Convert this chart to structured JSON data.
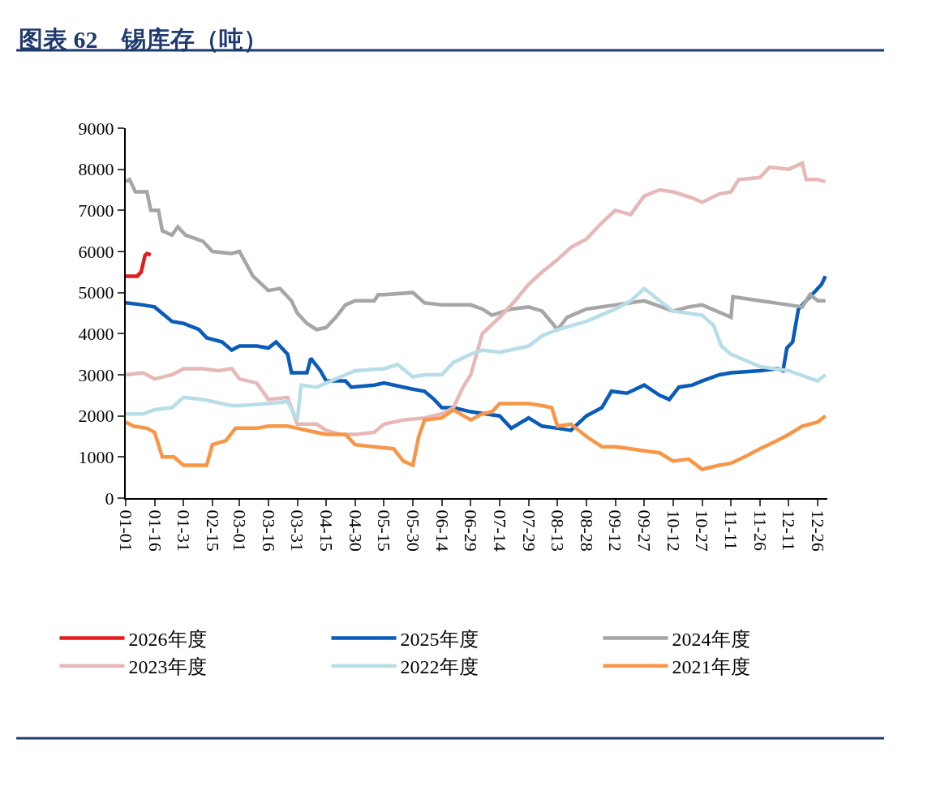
{
  "chart_data": {
    "type": "line",
    "title": "图表 62　锡库存（吨）",
    "xlim": [
      "--01-01",
      "--12-31"
    ],
    "xticks": [
      {
        "value": "--01-01",
        "label": "01-01"
      },
      {
        "value": "--01-16",
        "label": "01-16"
      },
      {
        "value": "--01-31",
        "label": "01-31"
      },
      {
        "value": "--02-15",
        "label": "02-15"
      },
      {
        "value": "--03-01",
        "label": "03-01"
      },
      {
        "value": "--03-16",
        "label": "03-16"
      },
      {
        "value": "--03-31",
        "label": "03-31"
      },
      {
        "value": "--04-15",
        "label": "04-15"
      },
      {
        "value": "--04-30",
        "label": "04-30"
      },
      {
        "value": "--05-15",
        "label": "05-15"
      },
      {
        "value": "--05-30",
        "label": "05-30"
      },
      {
        "value": "--06-14",
        "label": "06-14"
      },
      {
        "value": "--06-29",
        "label": "06-29"
      },
      {
        "value": "--07-14",
        "label": "07-14"
      },
      {
        "value": "--07-29",
        "label": "07-29"
      },
      {
        "value": "--08-13",
        "label": "08-13"
      },
      {
        "value": "--08-28",
        "label": "08-28"
      },
      {
        "value": "--09-12",
        "label": "09-12"
      },
      {
        "value": "--09-27",
        "label": "09-27"
      },
      {
        "value": "--10-12",
        "label": "10-12"
      },
      {
        "value": "--10-27",
        "label": "10-27"
      },
      {
        "value": "--11-11",
        "label": "11-11"
      },
      {
        "value": "--11-26",
        "label": "11-26"
      },
      {
        "value": "--12-11",
        "label": "12-11"
      },
      {
        "value": "--12-26",
        "label": "12-26"
      }
    ],
    "ylim": [
      0,
      9000
    ],
    "yticks": [
      0,
      1000,
      2000,
      3000,
      4000,
      5000,
      6000,
      7000,
      8000,
      9000
    ],
    "grid": false,
    "legend": "bottom",
    "marker": "none",
    "line_style": "solid",
    "series": [
      {
        "name": "2026年度",
        "color": "#e31a1c",
        "x": [
          "--01-01",
          "--01-07",
          "--01-09",
          "--01-11",
          "--01-12",
          "--01-14"
        ],
        "values": [
          5400,
          5400,
          5500,
          5900,
          5950,
          5920
        ]
      },
      {
        "name": "2025年度",
        "color": "#0a5cb8",
        "x": [
          "--01-01",
          "--01-10",
          "--01-16",
          "--01-25",
          "--01-31",
          "--02-08",
          "--02-12",
          "--02-20",
          "--02-25",
          "--03-01",
          "--03-10",
          "--03-16",
          "--03-20",
          "--03-26",
          "--03-28",
          "--04-05",
          "--04-07",
          "--04-12",
          "--04-15",
          "--04-25",
          "--04-28",
          "--05-10",
          "--05-15",
          "--05-25",
          "--05-30",
          "--06-05",
          "--06-10",
          "--06-14",
          "--06-20",
          "--06-29",
          "--07-14",
          "--07-20",
          "--07-29",
          "--08-05",
          "--08-13",
          "--08-20",
          "--08-28",
          "--09-05",
          "--09-10",
          "--09-18",
          "--09-27",
          "--10-05",
          "--10-10",
          "--10-15",
          "--10-22",
          "--10-27",
          "--11-05",
          "--11-11",
          "--11-26",
          "--12-05",
          "--12-08",
          "--12-10",
          "--12-13",
          "--12-16",
          "--12-18",
          "--12-20",
          "--12-24",
          "--12-28",
          "--12-30"
        ],
        "values": [
          4750,
          4700,
          4650,
          4300,
          4250,
          4100,
          3900,
          3800,
          3600,
          3700,
          3700,
          3650,
          3800,
          3500,
          3050,
          3050,
          3400,
          3100,
          2850,
          2850,
          2700,
          2750,
          2800,
          2700,
          2650,
          2600,
          2400,
          2200,
          2200,
          2100,
          2000,
          1700,
          1950,
          1750,
          1700,
          1650,
          2000,
          2200,
          2600,
          2550,
          2750,
          2500,
          2400,
          2700,
          2750,
          2850,
          3000,
          3050,
          3100,
          3150,
          3100,
          3650,
          3800,
          4600,
          4700,
          4800,
          5000,
          5200,
          5400
        ]
      },
      {
        "name": "2024年度",
        "color": "#a6a6a6",
        "x": [
          "--01-01",
          "--01-03",
          "--01-06",
          "--01-12",
          "--01-14",
          "--01-18",
          "--01-20",
          "--01-25",
          "--01-28",
          "--02-01",
          "--02-10",
          "--02-15",
          "--02-25",
          "--03-01",
          "--03-08",
          "--03-16",
          "--03-22",
          "--03-28",
          "--03-31",
          "--04-05",
          "--04-10",
          "--04-15",
          "--04-20",
          "--04-25",
          "--04-30",
          "--05-10",
          "--05-12",
          "--05-15",
          "--05-30",
          "--06-05",
          "--06-14",
          "--06-29",
          "--07-05",
          "--07-10",
          "--07-20",
          "--07-29",
          "--08-05",
          "--08-13",
          "--08-18",
          "--08-28",
          "--09-12",
          "--09-27",
          "--10-12",
          "--10-20",
          "--10-27",
          "--11-11",
          "--11-12",
          "--11-26",
          "--12-11",
          "--12-18",
          "--12-22",
          "--12-26",
          "--12-30"
        ],
        "values": [
          7700,
          7750,
          7450,
          7450,
          7000,
          7000,
          6500,
          6400,
          6600,
          6400,
          6250,
          6000,
          5950,
          6000,
          5400,
          5050,
          5100,
          4800,
          4500,
          4250,
          4100,
          4150,
          4400,
          4700,
          4800,
          4800,
          4950,
          4950,
          5000,
          4750,
          4700,
          4700,
          4600,
          4450,
          4600,
          4650,
          4550,
          4100,
          4400,
          4600,
          4700,
          4800,
          4550,
          4650,
          4700,
          4400,
          4900,
          4800,
          4700,
          4650,
          4950,
          4800,
          4800
        ]
      },
      {
        "name": "2023年度",
        "color": "#e6b8b7",
        "x": [
          "--01-01",
          "--01-10",
          "--01-16",
          "--01-25",
          "--01-31",
          "--02-10",
          "--02-18",
          "--02-25",
          "--03-01",
          "--03-10",
          "--03-16",
          "--03-26",
          "--03-31",
          "--04-10",
          "--04-15",
          "--04-22",
          "--04-30",
          "--05-10",
          "--05-15",
          "--05-25",
          "--06-05",
          "--06-14",
          "--06-20",
          "--06-25",
          "--06-29",
          "--07-05",
          "--07-14",
          "--07-22",
          "--07-29",
          "--08-05",
          "--08-13",
          "--08-20",
          "--08-28",
          "--09-05",
          "--09-12",
          "--09-20",
          "--09-27",
          "--10-05",
          "--10-12",
          "--10-22",
          "--10-27",
          "--11-05",
          "--11-11",
          "--11-15",
          "--11-26",
          "--12-01",
          "--12-11",
          "--12-18",
          "--12-20",
          "--12-26",
          "--12-30"
        ],
        "values": [
          3000,
          3050,
          2900,
          3000,
          3150,
          3150,
          3100,
          3150,
          2900,
          2800,
          2400,
          2450,
          1800,
          1800,
          1650,
          1550,
          1550,
          1600,
          1800,
          1900,
          1950,
          2050,
          2200,
          2700,
          3000,
          4000,
          4400,
          4800,
          5200,
          5500,
          5800,
          6100,
          6300,
          6700,
          7000,
          6900,
          7350,
          7500,
          7450,
          7300,
          7200,
          7400,
          7450,
          7750,
          7800,
          8050,
          8000,
          8150,
          7750,
          7750,
          7700
        ]
      },
      {
        "name": "2022年度",
        "color": "#b7dde8",
        "x": [
          "--01-01",
          "--01-10",
          "--01-16",
          "--01-25",
          "--01-31",
          "--02-10",
          "--02-15",
          "--02-25",
          "--03-01",
          "--03-16",
          "--03-26",
          "--03-31",
          "--04-02",
          "--04-10",
          "--04-15",
          "--04-25",
          "--04-30",
          "--05-15",
          "--05-22",
          "--05-30",
          "--06-05",
          "--06-14",
          "--06-20",
          "--06-29",
          "--07-05",
          "--07-14",
          "--07-29",
          "--08-05",
          "--08-13",
          "--08-28",
          "--09-12",
          "--09-20",
          "--09-27",
          "--10-05",
          "--10-12",
          "--10-27",
          "--11-02",
          "--11-06",
          "--11-11",
          "--11-26",
          "--12-11",
          "--12-20",
          "--12-26",
          "--12-30"
        ],
        "values": [
          2050,
          2050,
          2150,
          2200,
          2450,
          2400,
          2350,
          2250,
          2250,
          2300,
          2350,
          1900,
          2750,
          2700,
          2800,
          3000,
          3100,
          3150,
          3250,
          2950,
          3000,
          3000,
          3300,
          3500,
          3600,
          3550,
          3700,
          3950,
          4100,
          4300,
          4600,
          4800,
          5100,
          4800,
          4550,
          4450,
          4200,
          3700,
          3500,
          3200,
          3100,
          2950,
          2850,
          3000
        ]
      },
      {
        "name": "2021年度",
        "color": "#f79646",
        "x": [
          "--01-01",
          "--01-05",
          "--01-12",
          "--01-16",
          "--01-20",
          "--01-26",
          "--01-31",
          "--02-08",
          "--02-12",
          "--02-15",
          "--02-22",
          "--02-27",
          "--03-01",
          "--03-10",
          "--03-16",
          "--03-26",
          "--03-31",
          "--04-10",
          "--04-15",
          "--04-25",
          "--04-30",
          "--05-10",
          "--05-20",
          "--05-25",
          "--05-30",
          "--06-02",
          "--06-05",
          "--06-14",
          "--06-20",
          "--06-29",
          "--07-05",
          "--07-10",
          "--07-14",
          "--07-29",
          "--08-05",
          "--08-10",
          "--08-13",
          "--08-20",
          "--08-28",
          "--09-05",
          "--09-12",
          "--09-20",
          "--09-27",
          "--10-05",
          "--10-12",
          "--10-20",
          "--10-27",
          "--11-05",
          "--11-11",
          "--11-18",
          "--11-26",
          "--12-05",
          "--12-11",
          "--12-18",
          "--12-26",
          "--12-30"
        ],
        "values": [
          1850,
          1750,
          1700,
          1600,
          1000,
          1000,
          800,
          800,
          800,
          1300,
          1400,
          1700,
          1700,
          1700,
          1750,
          1750,
          1700,
          1600,
          1550,
          1550,
          1300,
          1250,
          1200,
          900,
          800,
          1500,
          1900,
          1950,
          2150,
          1900,
          2050,
          2100,
          2300,
          2300,
          2250,
          2200,
          1750,
          1800,
          1500,
          1250,
          1250,
          1200,
          1150,
          1100,
          900,
          950,
          700,
          800,
          850,
          1000,
          1200,
          1400,
          1550,
          1750,
          1850,
          2000
        ]
      }
    ]
  }
}
